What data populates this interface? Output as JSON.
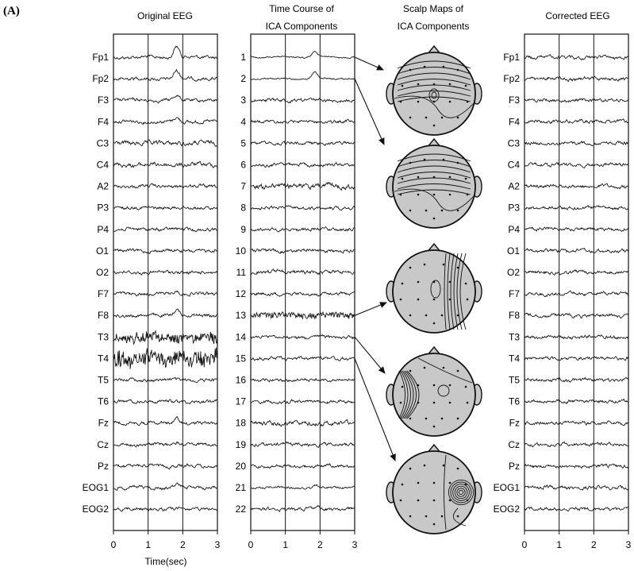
{
  "figure": {
    "panel_label": "(A)",
    "columns": {
      "original": {
        "title": "Original EEG",
        "channels": [
          "Fp1",
          "Fp2",
          "F3",
          "F4",
          "C3",
          "C4",
          "A2",
          "P3",
          "P4",
          "O1",
          "O2",
          "F7",
          "F8",
          "T3",
          "T4",
          "T5",
          "T6",
          "Fz",
          "Cz",
          "Pz",
          "EOG1",
          "EOG2"
        ]
      },
      "ica_time": {
        "title_line1": "Time Course of",
        "title_line2": "ICA Components",
        "channels": [
          "1",
          "2",
          "3",
          "4",
          "5",
          "6",
          "7",
          "8",
          "9",
          "10",
          "11",
          "12",
          "13",
          "14",
          "15",
          "16",
          "17",
          "18",
          "19",
          "20",
          "21",
          "22"
        ]
      },
      "scalp_maps": {
        "title_line1": "Scalp Maps of",
        "title_line2": "ICA Components"
      },
      "corrected": {
        "title": "Corrected EEG",
        "channels": [
          "Fp1",
          "Fp2",
          "F3",
          "F4",
          "C3",
          "C4",
          "A2",
          "P3",
          "P4",
          "O1",
          "O2",
          "F7",
          "F8",
          "T3",
          "T4",
          "T5",
          "T6",
          "Fz",
          "Cz",
          "Pz",
          "EOG1",
          "EOG2"
        ]
      }
    },
    "x_axis": {
      "label": "Time(sec)",
      "ticks": [
        "0",
        "1",
        "2",
        "3"
      ],
      "range": [
        0,
        3
      ]
    },
    "map_links": [
      {
        "component": "1",
        "map": 1
      },
      {
        "component": "2",
        "map": 2
      },
      {
        "component": "13",
        "map": 3
      },
      {
        "component": "14",
        "map": 4
      },
      {
        "component": "15",
        "map": 5
      }
    ],
    "colors": {
      "ink": "#111111",
      "trace": "#1a1a1a",
      "map_fill": "#c8c8c8",
      "background": "#ffffff"
    }
  }
}
